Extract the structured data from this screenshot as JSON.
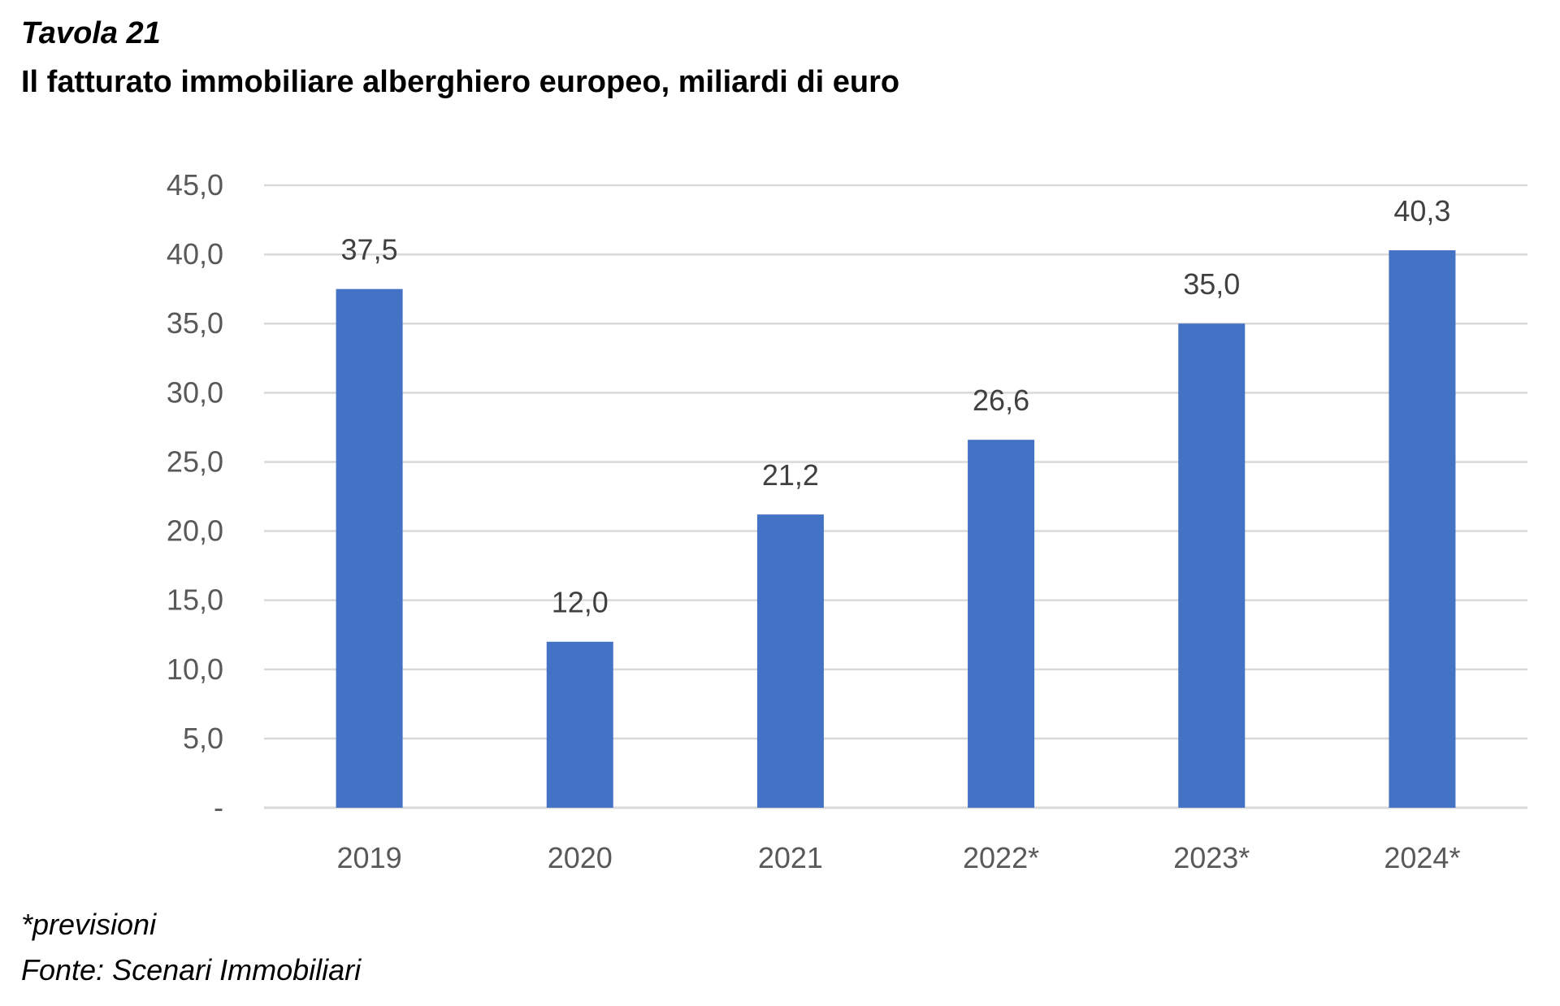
{
  "header": {
    "table_number": "Tavola 21",
    "title": "Il fatturato immobiliare alberghiero europeo, miliardi di euro"
  },
  "footer": {
    "note": "*previsioni",
    "source": "Fonte: Scenari Immobiliari"
  },
  "colors": {
    "bar": "#4472C4",
    "grid": "#D9D9D9",
    "tick_text": "#595959",
    "data_label_text": "#404040"
  },
  "chart_data": {
    "type": "bar",
    "title": "Il fatturato immobiliare alberghiero europeo, miliardi di euro",
    "xlabel": "",
    "ylabel": "",
    "categories": [
      "2019",
      "2020",
      "2021",
      "2022*",
      "2023*",
      "2024*"
    ],
    "values": [
      37.5,
      12.0,
      21.2,
      26.6,
      35.0,
      40.3
    ],
    "data_labels": [
      "37,5",
      "12,0",
      "21,2",
      "26,6",
      "35,0",
      "40,3"
    ],
    "ylim": [
      0,
      45
    ],
    "y_ticks": [
      0,
      5,
      10,
      15,
      20,
      25,
      30,
      35,
      40,
      45
    ],
    "y_tick_labels": [
      "-",
      "5,0",
      "10,0",
      "15,0",
      "20,0",
      "25,0",
      "30,0",
      "35,0",
      "40,0",
      "45,0"
    ],
    "grid": true,
    "legend": "none"
  }
}
